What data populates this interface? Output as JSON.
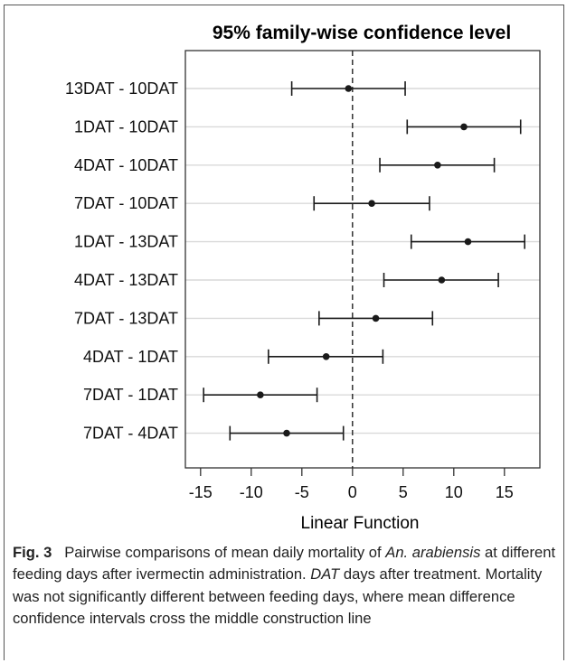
{
  "chart_data": {
    "type": "errorbar",
    "title": "95% family-wise confidence level",
    "xlabel": "Linear Function",
    "ylabel": "",
    "xlim": [
      -16.5,
      18.5
    ],
    "xticks": [
      -15,
      -10,
      -5,
      0,
      5,
      10,
      15
    ],
    "xtick_labels": [
      "-15",
      "-10",
      "-5",
      "0",
      "5",
      "10",
      "15"
    ],
    "reference_line": 0,
    "grid": "horizontal",
    "comparisons": [
      {
        "label": "13DAT - 10DAT",
        "estimate": -0.4,
        "lower": -6.0,
        "upper": 5.2
      },
      {
        "label": "1DAT - 10DAT",
        "estimate": 11.0,
        "lower": 5.4,
        "upper": 16.6
      },
      {
        "label": "4DAT - 10DAT",
        "estimate": 8.4,
        "lower": 2.7,
        "upper": 14.0
      },
      {
        "label": "7DAT - 10DAT",
        "estimate": 1.9,
        "lower": -3.8,
        "upper": 7.6
      },
      {
        "label": "1DAT - 13DAT",
        "estimate": 11.4,
        "lower": 5.8,
        "upper": 17.0
      },
      {
        "label": "4DAT - 13DAT",
        "estimate": 8.8,
        "lower": 3.1,
        "upper": 14.4
      },
      {
        "label": "7DAT - 13DAT",
        "estimate": 2.3,
        "lower": -3.3,
        "upper": 7.9
      },
      {
        "label": "4DAT - 1DAT",
        "estimate": -2.6,
        "lower": -8.3,
        "upper": 3.0
      },
      {
        "label": "7DAT - 1DAT",
        "estimate": -9.1,
        "lower": -14.7,
        "upper": -3.5
      },
      {
        "label": "7DAT - 4DAT",
        "estimate": -6.5,
        "lower": -12.1,
        "upper": -0.9
      }
    ]
  },
  "caption": {
    "fig_label": "Fig. 3",
    "part1": "Pairwise comparisons of mean daily mortality of ",
    "species": "An. arabiensis",
    "part2": " at different feeding days after ivermectin administration. ",
    "abbr": "DAT",
    "part3": " days after treatment. Mortality was not significantly different between feeding days, where mean difference confidence intervals cross the middle construction line"
  },
  "colors": {
    "grid": "#d9d9d9",
    "marks": "#1a1a1a",
    "axis": "#333333"
  }
}
